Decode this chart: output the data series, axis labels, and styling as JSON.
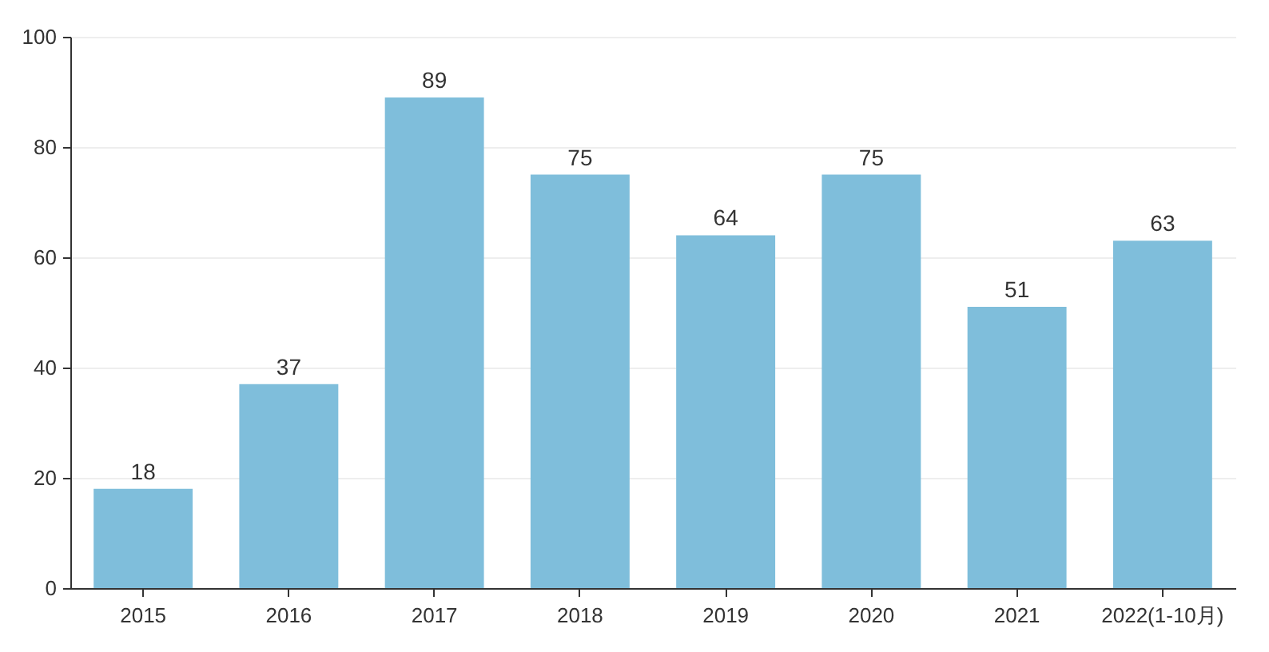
{
  "chart_data": {
    "type": "bar",
    "categories": [
      "2015",
      "2016",
      "2017",
      "2018",
      "2019",
      "2020",
      "2021",
      "2022(1-10月)"
    ],
    "values": [
      18,
      37,
      89,
      75,
      64,
      75,
      51,
      63
    ],
    "color": "#7fbedb",
    "ylim": [
      0,
      100
    ],
    "yticks": [
      0,
      20,
      40,
      60,
      80,
      100
    ],
    "grid": "y",
    "data_labels": true
  }
}
